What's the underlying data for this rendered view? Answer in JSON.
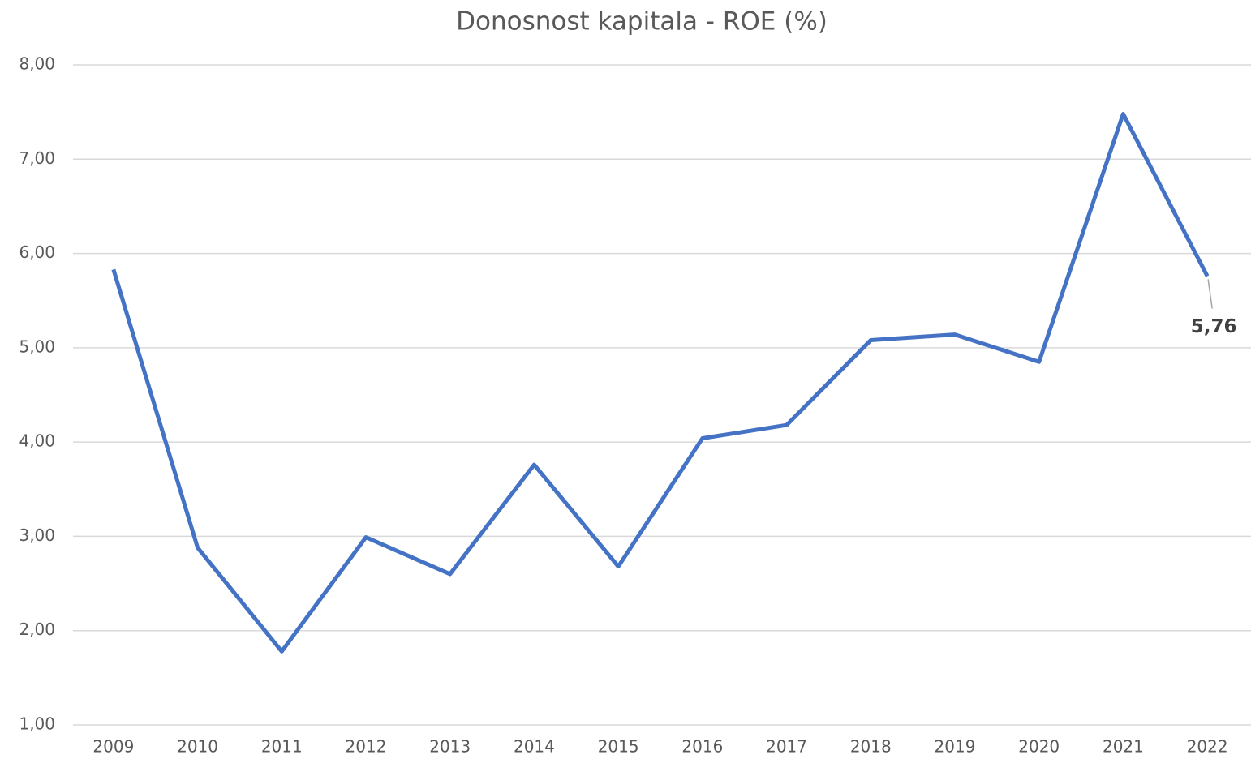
{
  "chart_data": {
    "type": "line",
    "title": "Donosnost kapitala - ROE (%)",
    "categories": [
      "2009",
      "2010",
      "2011",
      "2012",
      "2013",
      "2014",
      "2015",
      "2016",
      "2017",
      "2018",
      "2019",
      "2020",
      "2021",
      "2022"
    ],
    "series": [
      {
        "name": "ROE",
        "color": "#4472c4",
        "values": [
          5.83,
          2.88,
          1.78,
          2.99,
          2.6,
          3.76,
          2.68,
          4.04,
          4.18,
          5.08,
          5.14,
          4.85,
          7.48,
          5.76
        ],
        "value_labels": [
          null,
          null,
          null,
          null,
          null,
          null,
          null,
          null,
          null,
          null,
          null,
          null,
          null,
          "5,76"
        ]
      }
    ],
    "ylim": [
      1,
      8
    ],
    "yticks": [
      {
        "value": 1,
        "label": "1,00"
      },
      {
        "value": 2,
        "label": "2,00"
      },
      {
        "value": 3,
        "label": "3,00"
      },
      {
        "value": 4,
        "label": "4,00"
      },
      {
        "value": 5,
        "label": "5,00"
      },
      {
        "value": 6,
        "label": "6,00"
      },
      {
        "value": 7,
        "label": "7,00"
      },
      {
        "value": 8,
        "label": "8,00"
      }
    ],
    "grid": true
  }
}
